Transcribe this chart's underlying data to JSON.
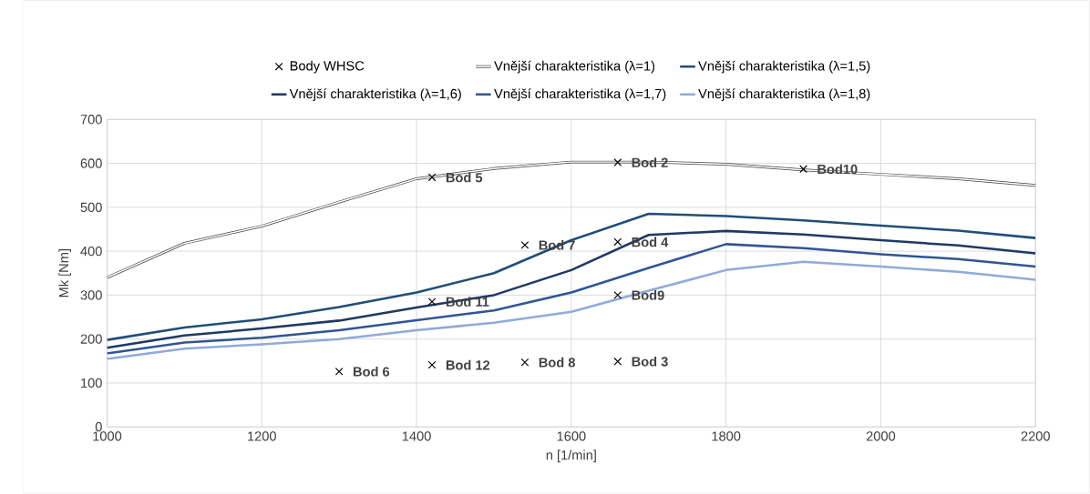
{
  "chart_data": {
    "type": "line",
    "xlabel": "n [1/min]",
    "ylabel": "Mk [Nm]",
    "x": [
      1000,
      1100,
      1200,
      1300,
      1400,
      1500,
      1600,
      1700,
      1800,
      1900,
      2000,
      2100,
      2200
    ],
    "series": [
      {
        "name": "Body WHSC",
        "type": "scatter",
        "marker": "cross",
        "color": "#000000",
        "x": [
          1660,
          1660,
          1660,
          1420,
          1300,
          1540,
          1540,
          1660,
          1900,
          1420,
          1420
        ],
        "values": [
          602,
          149,
          421,
          568,
          126,
          414,
          147,
          300,
          587,
          285,
          141
        ]
      },
      {
        "name": "Vnější charakteristika (λ=1)",
        "type": "line",
        "color": "#404040",
        "values": [
          340,
          418,
          457,
          512,
          565,
          588,
          603,
          603,
          598,
          585,
          575,
          565,
          550
        ]
      },
      {
        "name": "Vnější charakteristika (λ=1,5)",
        "type": "line",
        "color": "#1f4e79",
        "values": [
          198,
          226,
          245,
          273,
          306,
          350,
          425,
          485,
          480,
          470,
          458,
          447,
          430
        ]
      },
      {
        "name": "Vnější charakteristika (λ=1,6)",
        "type": "line",
        "color": "#203864",
        "values": [
          180,
          208,
          224,
          242,
          272,
          300,
          357,
          437,
          446,
          438,
          425,
          413,
          395
        ]
      },
      {
        "name": "Vnější charakteristika (λ=1,7)",
        "type": "line",
        "color": "#2f5597",
        "values": [
          167,
          192,
          203,
          220,
          243,
          265,
          306,
          362,
          416,
          407,
          393,
          382,
          365
        ]
      },
      {
        "name": "Vnější charakteristika (λ=1,8)",
        "type": "line",
        "color": "#8faadc",
        "values": [
          155,
          178,
          188,
          200,
          220,
          237,
          262,
          310,
          357,
          376,
          365,
          353,
          335
        ]
      }
    ],
    "annotations": [
      {
        "text": "Bod 2",
        "x": 1660,
        "y": 602
      },
      {
        "text": "Bod 3",
        "x": 1660,
        "y": 149
      },
      {
        "text": "Bod 4",
        "x": 1660,
        "y": 421
      },
      {
        "text": "Bod 5",
        "x": 1420,
        "y": 568
      },
      {
        "text": "Bod 6",
        "x": 1300,
        "y": 126
      },
      {
        "text": "Bod 7",
        "x": 1540,
        "y": 414
      },
      {
        "text": "Bod 8",
        "x": 1540,
        "y": 147
      },
      {
        "text": "Bod9",
        "x": 1660,
        "y": 300
      },
      {
        "text": "Bod10",
        "x": 1900,
        "y": 587
      },
      {
        "text": "Bod 11",
        "x": 1420,
        "y": 285
      },
      {
        "text": "Bod 12",
        "x": 1420,
        "y": 141
      }
    ],
    "xlim": [
      1000,
      2200
    ],
    "xticks": [
      1000,
      1200,
      1400,
      1600,
      1800,
      2000,
      2200
    ],
    "ylim": [
      0,
      700
    ],
    "yticks": [
      0,
      100,
      200,
      300,
      400,
      500,
      600,
      700
    ],
    "grid": true,
    "legend": "top",
    "line_style": "solid"
  }
}
